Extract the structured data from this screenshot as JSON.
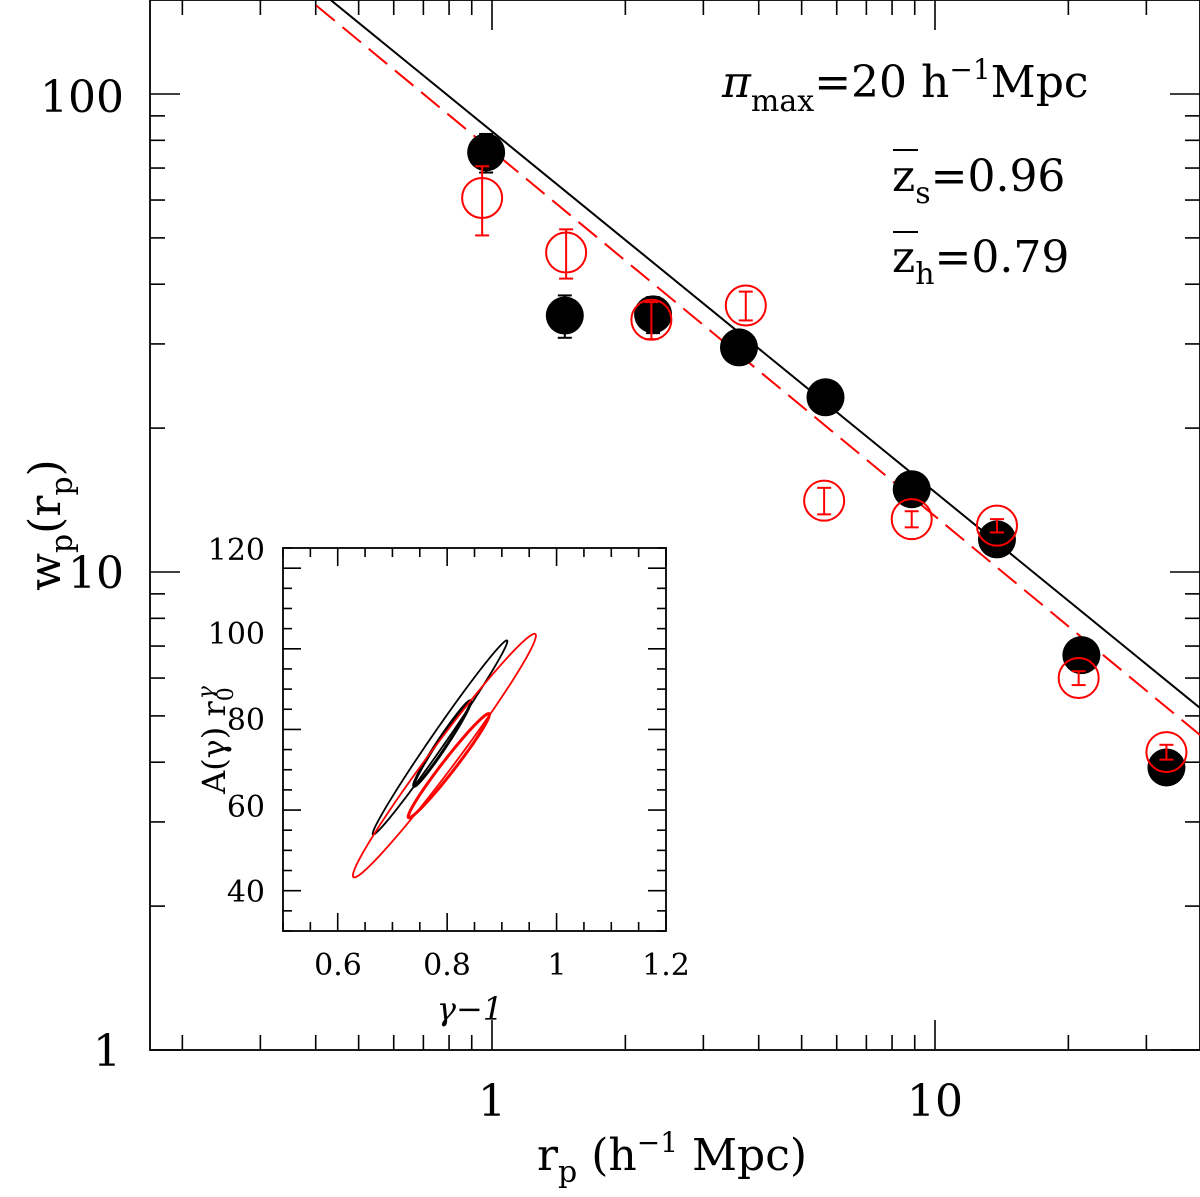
{
  "chart_data": [
    {
      "type": "scatter",
      "xlabel": {
        "main": "r",
        "sub": "p",
        "rest": " (h",
        "sup": "−1",
        "tail": " Mpc)"
      },
      "ylabel": {
        "main": "w",
        "sub": "p",
        "rest": "(r",
        "sub2": "p",
        "tail": ")"
      },
      "x_scale": "log",
      "y_scale": "log",
      "xlim": [
        0.2,
        40
      ],
      "ylim": [
        1,
        160
      ],
      "x_tick_labels": [
        "1",
        "10"
      ],
      "y_tick_labels": [
        "1",
        "10",
        "100"
      ],
      "annotations": {
        "pi_max": {
          "symbol": "π",
          "sub": "max",
          "value": "=20  h",
          "sup": "−1",
          "unit": "Mpc"
        },
        "z_s": {
          "symbol": "z",
          "sub": "s",
          "value": "=0.96"
        },
        "z_h": {
          "symbol": "z",
          "sub": "h",
          "value": "=0.79"
        }
      },
      "series": [
        {
          "marker": "filled-circle",
          "color": "#000000",
          "x": [
            0.97,
            1.46,
            2.31,
            3.61,
            5.66,
            8.86,
            13.8,
            21.4,
            33.3
          ],
          "y": [
            75.5,
            34.4,
            34.6,
            29.5,
            23.2,
            14.9,
            11.7,
            6.7,
            3.9
          ],
          "err": [
            7,
            3.5,
            3,
            2,
            1.2,
            0.7,
            0.6,
            0.3,
            0.2
          ]
        },
        {
          "marker": "open-circle",
          "color": "#ff0000",
          "x": [
            0.95,
            1.47,
            2.29,
            3.74,
            5.62,
            8.86,
            13.8,
            21.1,
            33.3
          ],
          "y": [
            60.6,
            46.6,
            33.7,
            36.1,
            14.1,
            12.9,
            12.5,
            6.0,
            4.2
          ],
          "err": [
            10,
            5.5,
            3,
            2.5,
            0.9,
            0.5,
            0.4,
            0.2,
            0.15
          ]
        }
      ],
      "fit_lines": [
        {
          "color": "#000000",
          "style": "solid",
          "x": [
            0.39,
            40
          ],
          "y": [
            170,
            5.16
          ]
        },
        {
          "color": "#ff0000",
          "style": "dashed",
          "x": [
            0.35,
            40
          ],
          "y": [
            170,
            4.53
          ]
        }
      ]
    },
    {
      "type": "line",
      "xlabel": "γ−1",
      "ylabel": {
        "main": "A(γ) r",
        "sub": "0",
        "sup": "γ"
      },
      "xlim": [
        0.5,
        1.2
      ],
      "ylim": [
        30,
        125
      ],
      "x_tick_labels": [
        "0.6",
        "0.8",
        "1",
        "1.2"
      ],
      "x_tick_values": [
        0.6,
        0.8,
        1.0,
        1.2
      ],
      "y_tick_labels": [
        "40",
        "60",
        "80",
        "100",
        "120"
      ],
      "y_tick_values": [
        40,
        60,
        80,
        100,
        120
      ],
      "contours": [
        {
          "color": "#000000",
          "level": "outer",
          "center": [
            0.787,
            78
          ],
          "u": [
            0.123,
            24
          ],
          "v": [
            0.0054,
            -2.1
          ]
        },
        {
          "color": "#000000",
          "level": "inner",
          "center": [
            0.791,
            76.5
          ],
          "u": [
            0.052,
            10.5
          ],
          "v": [
            0.0036,
            -1.4
          ]
        },
        {
          "color": "#ff0000",
          "level": "outer",
          "center": [
            0.795,
            73.5
          ],
          "u": [
            0.167,
            30
          ],
          "v": [
            0.0095,
            -3.6
          ]
        },
        {
          "color": "#ff0000",
          "level": "inner",
          "center": [
            0.803,
            71
          ],
          "u": [
            0.074,
            12.8
          ],
          "v": [
            0.005,
            -1.75
          ]
        }
      ]
    }
  ]
}
